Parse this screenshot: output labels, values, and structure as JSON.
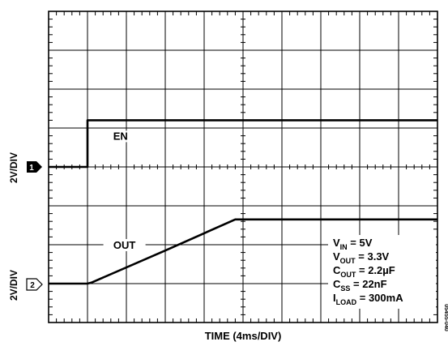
{
  "chart_data": {
    "type": "line",
    "xlabel": "TIME (4ms/DIV)",
    "x_divisions": 10,
    "y_divisions": 8,
    "grid": true,
    "channels": [
      {
        "marker": "1",
        "scale": "2V/DIV",
        "marker_style": "filled"
      },
      {
        "marker": "2",
        "scale": "2V/DIV",
        "marker_style": "outline"
      }
    ],
    "series": [
      {
        "name": "EN",
        "channel": "1",
        "x": [
          0,
          4,
          4,
          40
        ],
        "y": [
          0,
          0,
          2.4,
          2.4
        ]
      },
      {
        "name": "OUT",
        "channel": "2",
        "x": [
          0,
          4,
          4.4,
          12,
          19.2,
          40
        ],
        "y": [
          0,
          0,
          0.05,
          1.7,
          3.3,
          3.3
        ]
      }
    ],
    "annotations": [
      {
        "text": "EN",
        "series": "EN"
      },
      {
        "text": "OUT",
        "series": "OUT"
      }
    ],
    "conditions": [
      {
        "sym": "V",
        "sub": "IN",
        "rest": " = 5V"
      },
      {
        "sym": "V",
        "sub": "OUT",
        "rest": " = 3.3V"
      },
      {
        "sym": "C",
        "sub": "OUT",
        "rest": " = 2.2µF"
      },
      {
        "sym": "C",
        "sub": "SS",
        "rest": " = 22nF"
      },
      {
        "sym": "I",
        "sub": "LOAD",
        "rest": " = 300mA"
      }
    ],
    "figure_id": "05455-040"
  }
}
